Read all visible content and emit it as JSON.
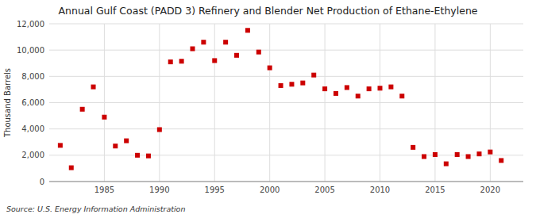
{
  "chart_data": {
    "type": "scatter",
    "title": "Annual Gulf Coast (PADD 3) Refinery and Blender Net Production of Ethane-Ethylene",
    "ylabel": "Thousand Barrels",
    "source": "Source: U.S. Energy Information Administration",
    "color": "#cc0000",
    "marker": "square",
    "grid": true,
    "x": [
      1981,
      1982,
      1983,
      1984,
      1985,
      1986,
      1987,
      1988,
      1989,
      1990,
      1991,
      1992,
      1993,
      1994,
      1995,
      1996,
      1997,
      1998,
      1999,
      2000,
      2001,
      2002,
      2003,
      2004,
      2005,
      2006,
      2007,
      2008,
      2009,
      2010,
      2011,
      2012,
      2013,
      2014,
      2015,
      2016,
      2017,
      2018,
      2019,
      2020,
      2021
    ],
    "values": [
      2750,
      1050,
      5500,
      7200,
      4900,
      2700,
      3100,
      2000,
      1950,
      3950,
      9100,
      9150,
      10100,
      10600,
      9200,
      10600,
      9600,
      11500,
      9850,
      8650,
      7300,
      7400,
      7500,
      8100,
      7050,
      6700,
      7150,
      6500,
      7050,
      7100,
      7200,
      6500,
      2600,
      1900,
      2050,
      1350,
      2050,
      1900,
      2100,
      2250,
      1600
    ],
    "xlim": [
      1980,
      2023
    ],
    "ylim": [
      0,
      12000
    ],
    "xticks": [
      1985,
      1990,
      1995,
      2000,
      2005,
      2010,
      2015,
      2020
    ],
    "yticks": [
      0,
      {
        "value": 2000,
        "label": "2,000"
      },
      {
        "value": 4000,
        "label": "4,000"
      },
      {
        "value": 6000,
        "label": "6,000"
      },
      {
        "value": 8000,
        "label": "8,000"
      },
      {
        "value": 10000,
        "label": "10,000"
      },
      {
        "value": 12000,
        "label": "12,000"
      }
    ]
  }
}
